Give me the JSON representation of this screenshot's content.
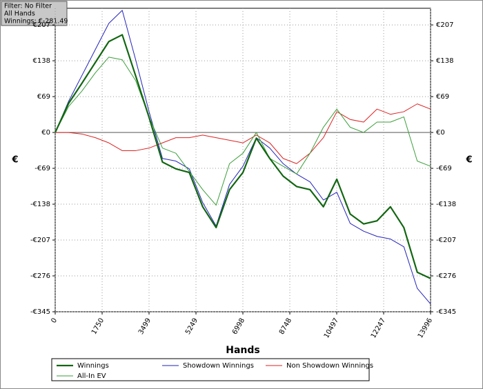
{
  "info_box": {
    "lines": [
      "Filter: No Filter",
      "All Hands",
      "Winnings: €-281.49"
    ]
  },
  "chart_data": {
    "type": "line",
    "x_label": "Hands",
    "y_label": "€",
    "grid": true,
    "x": [
      0,
      500,
      1000,
      1500,
      2000,
      2500,
      3000,
      3500,
      4000,
      4500,
      5000,
      5500,
      6000,
      6500,
      7000,
      7500,
      8000,
      8500,
      9000,
      9500,
      10000,
      10500,
      11000,
      11500,
      12000,
      12500,
      13000,
      13500,
      13996
    ],
    "xlim": [
      0,
      13996
    ],
    "xticks": [
      0,
      1750,
      3499,
      5249,
      6998,
      8748,
      10497,
      12247,
      13996
    ],
    "ylim": [
      -345,
      239
    ],
    "yticks": [
      {
        "value": -345,
        "label": "-€345"
      },
      {
        "value": -276,
        "label": "-€276"
      },
      {
        "value": -207,
        "label": "-€207"
      },
      {
        "value": -138,
        "label": "-€138"
      },
      {
        "value": -69,
        "label": "-€69"
      },
      {
        "value": 0,
        "label": "€0"
      },
      {
        "value": 69,
        "label": "€69"
      },
      {
        "value": 138,
        "label": "€138"
      },
      {
        "value": 207,
        "label": "€207"
      }
    ],
    "series": [
      {
        "name": "Winnings",
        "color": "#116611",
        "width": 2.2,
        "values": [
          0,
          56,
          95,
          135,
          175,
          188,
          109,
          29,
          -57,
          -70,
          -77,
          -143,
          -183,
          -110,
          -77,
          -11,
          -50,
          -84,
          -104,
          -110,
          -143,
          -90,
          -157,
          -176,
          -170,
          -143,
          -183,
          -269,
          -281
        ]
      },
      {
        "name": "Showdown Winnings",
        "color": "#2222bb",
        "width": 1,
        "values": [
          0,
          60,
          110,
          160,
          210,
          235,
          140,
          40,
          -50,
          -55,
          -70,
          -135,
          -180,
          -100,
          -65,
          -10,
          -30,
          -60,
          -80,
          -95,
          -130,
          -115,
          -175,
          -190,
          -200,
          -205,
          -220,
          -300,
          -330
        ]
      },
      {
        "name": "Non Showdown Winnings",
        "color": "#dd2222",
        "width": 1,
        "values": [
          0,
          0,
          -3,
          -10,
          -20,
          -35,
          -35,
          -30,
          -20,
          -10,
          -10,
          -5,
          -10,
          -15,
          -20,
          -5,
          -20,
          -50,
          -60,
          -40,
          -10,
          40,
          25,
          20,
          45,
          35,
          40,
          55,
          45
        ]
      },
      {
        "name": "All-In EV",
        "color": "#3a9e3a",
        "width": 1,
        "values": [
          0,
          50,
          80,
          115,
          145,
          140,
          100,
          30,
          -30,
          -40,
          -75,
          -110,
          -140,
          -60,
          -40,
          0,
          -50,
          -65,
          -80,
          -40,
          10,
          45,
          10,
          0,
          20,
          20,
          30,
          -55,
          -65
        ]
      }
    ]
  }
}
